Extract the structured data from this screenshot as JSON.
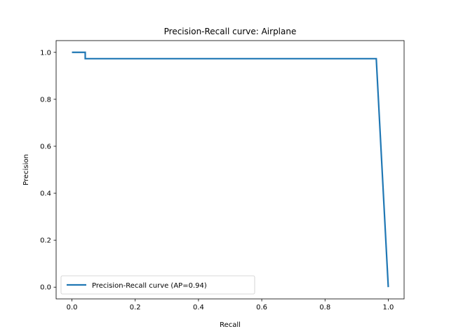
{
  "chart_data": {
    "type": "line",
    "title": "Precision-Recall curve: Airplane",
    "xlabel": "Recall",
    "ylabel": "Precision",
    "xlim": [
      -0.05,
      1.05
    ],
    "ylim": [
      -0.05,
      1.05
    ],
    "xticks": [
      0.0,
      0.2,
      0.4,
      0.6,
      0.8,
      1.0
    ],
    "yticks": [
      0.0,
      0.2,
      0.4,
      0.6,
      0.8,
      1.0
    ],
    "xtick_labels": [
      "0.0",
      "0.2",
      "0.4",
      "0.6",
      "0.8",
      "1.0"
    ],
    "ytick_labels": [
      "0.0",
      "0.2",
      "0.4",
      "0.6",
      "0.8",
      "1.0"
    ],
    "grid": false,
    "legend_position": "lower-left",
    "series": [
      {
        "name": "Precision-Recall curve (AP=0.94)",
        "color": "#1f77b4",
        "points": [
          [
            0.0,
            1.0
          ],
          [
            0.042,
            1.0
          ],
          [
            0.042,
            0.973
          ],
          [
            0.962,
            0.973
          ],
          [
            1.0,
            0.0
          ]
        ]
      }
    ]
  }
}
